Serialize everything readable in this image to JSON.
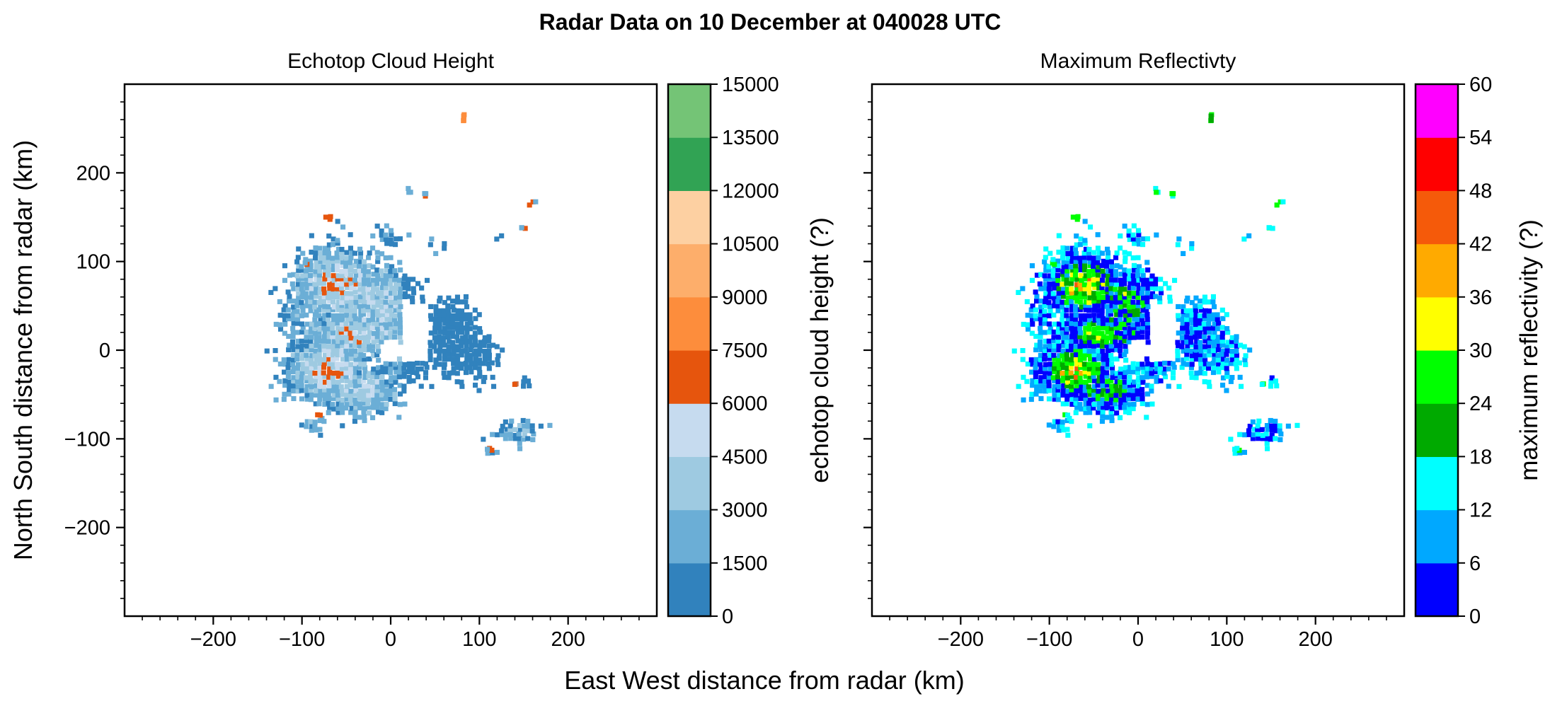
{
  "figure": {
    "suptitle": "Radar Data on 10 December at 040028 UTC",
    "xlabel": "East West distance from radar (km)",
    "ylabel": "North South distance from radar (km)"
  },
  "chart_data": [
    {
      "type": "heatmap",
      "title": "Echotop Cloud Height",
      "xlabel": "East West distance from radar (km)",
      "ylabel": "North South distance from radar (km)",
      "xlim": [
        -300,
        300
      ],
      "ylim": [
        -300,
        300
      ],
      "xticks": [
        -200,
        -100,
        0,
        100,
        200
      ],
      "yticks": [
        -200,
        -100,
        0,
        100,
        200
      ],
      "xtick_labels": [
        "−200",
        "−100",
        "0",
        "100",
        "200"
      ],
      "ytick_labels": [
        "−200",
        "−100",
        "0",
        "100",
        "200"
      ],
      "colorbar": {
        "label": "echotop cloud height (?)",
        "levels": [
          0,
          1500,
          3000,
          4500,
          6000,
          7500,
          9000,
          10500,
          12000,
          13500,
          15000
        ],
        "tick_labels": [
          "0",
          "1500",
          "3000",
          "4500",
          "6000",
          "7500",
          "9000",
          "10500",
          "12000",
          "13500",
          "15000"
        ],
        "colors": [
          "#3182bd",
          "#6baed6",
          "#9ecae1",
          "#c6dbef",
          "#e6550d",
          "#fd8d3c",
          "#fdae6b",
          "#fdd0a2",
          "#31a354",
          "#74c476"
        ]
      }
    },
    {
      "type": "heatmap",
      "title": "Maximum Reflectivty",
      "xlabel": "East West distance from radar (km)",
      "xlim": [
        -300,
        300
      ],
      "ylim": [
        -300,
        300
      ],
      "xticks": [
        -200,
        -100,
        0,
        100,
        200
      ],
      "yticks": [
        -200,
        -100,
        0,
        100,
        200
      ],
      "xtick_labels": [
        "−200",
        "−100",
        "0",
        "100",
        "200"
      ],
      "colorbar": {
        "label": "maximum reflectivity (?)",
        "levels": [
          0,
          6,
          12,
          18,
          24,
          30,
          36,
          42,
          48,
          54,
          60
        ],
        "tick_labels": [
          "0",
          "6",
          "12",
          "18",
          "24",
          "30",
          "36",
          "42",
          "48",
          "54",
          "60"
        ],
        "colors": [
          "#0000ff",
          "#00a8ff",
          "#00ffff",
          "#00aa00",
          "#00ff00",
          "#ffff00",
          "#ffaa00",
          "#f55a0a",
          "#ff0000",
          "#ff00ff"
        ]
      }
    }
  ]
}
